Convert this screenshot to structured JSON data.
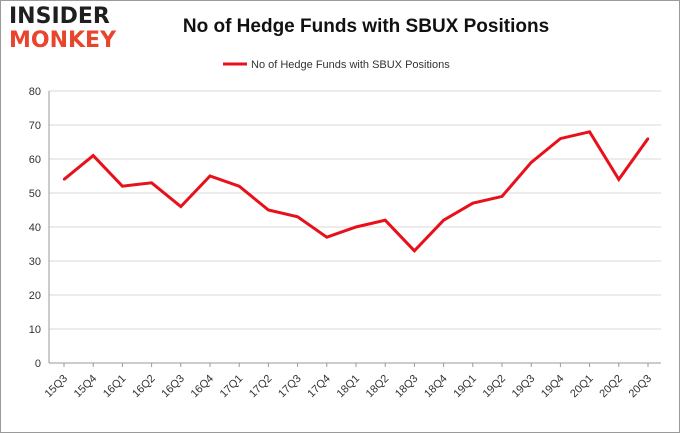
{
  "logo": {
    "line1": "INSIDER",
    "line2": "MONKEY"
  },
  "chart_data": {
    "type": "line",
    "title": "No of Hedge Funds with SBUX Positions",
    "categories": [
      "15Q3",
      "15Q4",
      "16Q1",
      "16Q2",
      "16Q3",
      "16Q4",
      "17Q1",
      "17Q2",
      "17Q3",
      "17Q4",
      "18Q1",
      "18Q2",
      "18Q3",
      "18Q4",
      "19Q1",
      "19Q2",
      "19Q3",
      "19Q4",
      "20Q1",
      "20Q2",
      "20Q3"
    ],
    "series": [
      {
        "name": "No of Hedge Funds with SBUX Positions",
        "color": "#e8101a",
        "values": [
          54,
          61,
          52,
          53,
          46,
          55,
          52,
          45,
          43,
          37,
          40,
          42,
          33,
          42,
          47,
          49,
          59,
          66,
          68,
          54,
          66
        ]
      }
    ],
    "ylim": [
      0,
      80
    ],
    "yticks": [
      0,
      10,
      20,
      30,
      40,
      50,
      60,
      70,
      80
    ],
    "grid": true,
    "legend_position": "top-center",
    "xlabel": "",
    "ylabel": ""
  }
}
